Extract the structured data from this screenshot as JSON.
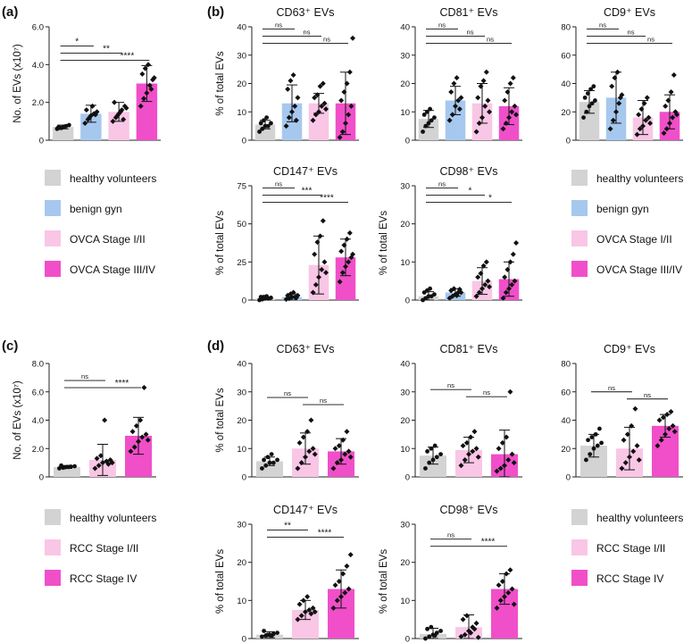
{
  "colors": {
    "healthy": "#d3d3d3",
    "benign": "#a6c8ef",
    "early": "#f9c6e6",
    "late": "#f04fc9",
    "axis": "#222222"
  },
  "panel_labels": {
    "a": "(a)",
    "b": "(b)",
    "c": "(c)",
    "d": "(d)"
  },
  "legends": {
    "ovca": [
      {
        "label": "healthy volunteers",
        "color": "#d3d3d3"
      },
      {
        "label": "benign gyn",
        "color": "#a6c8ef"
      },
      {
        "label": "OVCA Stage I/II",
        "color": "#f9c6e6"
      },
      {
        "label": "OVCA Stage III/IV",
        "color": "#f04fc9"
      }
    ],
    "ovca_b": [
      {
        "label": "healthy volunteers",
        "color": "#d3d3d3"
      },
      {
        "label": "benign gyn",
        "color": "#a6c8ef"
      },
      {
        "label": "OVCA Stage I/II",
        "color": "#f9c6e6"
      },
      {
        "label": "OVCA Stage III/IV",
        "color": "#f04fc9"
      }
    ],
    "rcc": [
      {
        "label": "healthy volunteers",
        "color": "#d3d3d3"
      },
      {
        "label": "RCC Stage I/II",
        "color": "#f9c6e6"
      },
      {
        "label": "RCC Stage IV",
        "color": "#f04fc9"
      }
    ],
    "rcc_d": [
      {
        "label": "healthy volunteers",
        "color": "#d3d3d3"
      },
      {
        "label": "RCC Stage I/II",
        "color": "#f9c6e6"
      },
      {
        "label": "RCC Stage IV",
        "color": "#f04fc9"
      }
    ]
  },
  "chart_data": [
    {
      "id": "a-total",
      "type": "bar",
      "title": "",
      "ylabel": "No. of EVs (x10⁷)",
      "ylim": [
        0,
        6
      ],
      "yticks": [
        "0",
        "2.0",
        "4.0",
        "6.0"
      ],
      "ytick_values": [
        0,
        2,
        4,
        6
      ],
      "categories": [
        "healthy volunteers",
        "benign gyn",
        "OVCA Stage I/II",
        "OVCA Stage III/IV"
      ],
      "values": [
        0.7,
        1.4,
        1.5,
        3.0
      ],
      "sd": [
        0.1,
        0.45,
        0.5,
        0.95
      ],
      "points": [
        [
          0.6,
          0.65,
          0.7,
          0.75,
          0.8,
          0.7,
          0.65,
          0.72
        ],
        [
          0.9,
          1.1,
          1.3,
          1.4,
          1.5,
          1.6,
          1.2,
          1.8,
          1.35
        ],
        [
          1.0,
          1.2,
          1.4,
          1.6,
          1.8,
          2.0,
          1.3,
          1.5,
          1.1,
          1.7
        ],
        [
          1.8,
          2.2,
          2.5,
          2.9,
          3.2,
          3.5,
          3.8,
          4.0,
          2.7,
          3.3
        ]
      ],
      "significance": [
        {
          "from": 0,
          "to": 1,
          "label": "*"
        },
        {
          "from": 0,
          "to": 2,
          "label": "**"
        },
        {
          "from": 0,
          "to": 3,
          "label": "****"
        }
      ]
    },
    {
      "id": "b-cd63",
      "type": "bar",
      "title": "CD63⁺ EVs",
      "ylabel": "% of total EVs",
      "ylim": [
        0,
        40
      ],
      "yticks": [
        "0",
        "10",
        "20",
        "30",
        "40"
      ],
      "ytick_values": [
        0,
        10,
        20,
        30,
        40
      ],
      "categories": [
        "healthy volunteers",
        "benign gyn",
        "OVCA Stage I/II",
        "OVCA Stage III/IV"
      ],
      "values": [
        5.5,
        13,
        13,
        13
      ],
      "sd": [
        1.5,
        6.5,
        3.5,
        11
      ],
      "points": [
        [
          3,
          4,
          5,
          5,
          6,
          6,
          7,
          8
        ],
        [
          5,
          8,
          10,
          12,
          15,
          18,
          21,
          23,
          7
        ],
        [
          7,
          9,
          10,
          12,
          13,
          15,
          16,
          19,
          20,
          11
        ],
        [
          1,
          3,
          6,
          9,
          12,
          14,
          17,
          20,
          24,
          36
        ]
      ],
      "significance": [
        {
          "from": 0,
          "to": 1,
          "label": "ns"
        },
        {
          "from": 0,
          "to": 2,
          "label": "ns"
        },
        {
          "from": 0,
          "to": 3,
          "label": "ns"
        }
      ]
    },
    {
      "id": "b-cd81",
      "type": "bar",
      "title": "CD81⁺ EVs",
      "ylabel": "",
      "ylim": [
        0,
        40
      ],
      "yticks": [
        "0",
        "10",
        "20",
        "30",
        "40"
      ],
      "ytick_values": [
        0,
        10,
        20,
        30,
        40
      ],
      "categories": [
        "healthy volunteers",
        "benign gyn",
        "OVCA Stage I/II",
        "OVCA Stage III/IV"
      ],
      "values": [
        7.5,
        14,
        13,
        12
      ],
      "sd": [
        3,
        5,
        7,
        6.5
      ],
      "points": [
        [
          3,
          5,
          6,
          7,
          8,
          9,
          10,
          11
        ],
        [
          7,
          9,
          12,
          14,
          15,
          17,
          20,
          22,
          11
        ],
        [
          3,
          6,
          8,
          12,
          14,
          15,
          19,
          21,
          24,
          10
        ],
        [
          4,
          6,
          8,
          10,
          12,
          14,
          17,
          20,
          22,
          9
        ]
      ],
      "significance": [
        {
          "from": 0,
          "to": 1,
          "label": "ns"
        },
        {
          "from": 0,
          "to": 2,
          "label": "ns"
        },
        {
          "from": 0,
          "to": 3,
          "label": "ns"
        }
      ]
    },
    {
      "id": "b-cd9",
      "type": "bar",
      "title": "CD9⁺ EVs",
      "ylabel": "",
      "ylim": [
        0,
        80
      ],
      "yticks": [
        "0",
        "20",
        "40",
        "60",
        "80"
      ],
      "ytick_values": [
        0,
        20,
        40,
        60,
        80
      ],
      "categories": [
        "healthy volunteers",
        "benign gyn",
        "OVCA Stage I/II",
        "OVCA Stage III/IV"
      ],
      "values": [
        27,
        30,
        16,
        20
      ],
      "sd": [
        8,
        18,
        12,
        12
      ],
      "points": [
        [
          16,
          20,
          24,
          26,
          28,
          30,
          33,
          36,
          38
        ],
        [
          8,
          14,
          20,
          26,
          32,
          38,
          44,
          48,
          30
        ],
        [
          4,
          8,
          10,
          14,
          16,
          18,
          22,
          26,
          30,
          12
        ],
        [
          5,
          8,
          12,
          16,
          20,
          24,
          28,
          34,
          46,
          18
        ]
      ],
      "significance": [
        {
          "from": 0,
          "to": 1,
          "label": "ns"
        },
        {
          "from": 0,
          "to": 2,
          "label": "ns"
        },
        {
          "from": 0,
          "to": 3,
          "label": "ns"
        }
      ]
    },
    {
      "id": "b-cd147",
      "type": "bar",
      "title": "CD147⁺ EVs",
      "ylabel": "% of total EVs",
      "ylim": [
        0,
        75
      ],
      "yticks": [
        "0",
        "25",
        "50",
        "75"
      ],
      "ytick_values": [
        0,
        25,
        50,
        75
      ],
      "categories": [
        "healthy volunteers",
        "benign gyn",
        "OVCA Stage I/II",
        "OVCA Stage III/IV"
      ],
      "values": [
        1,
        2,
        23,
        28
      ],
      "sd": [
        1,
        2,
        19,
        12
      ],
      "points": [
        [
          0,
          0.5,
          1,
          1,
          1.5,
          2,
          2,
          2.5
        ],
        [
          0.5,
          1,
          2,
          2,
          3,
          3,
          4,
          5,
          1.5
        ],
        [
          5,
          10,
          15,
          20,
          25,
          30,
          38,
          42,
          52,
          18
        ],
        [
          12,
          18,
          22,
          25,
          28,
          32,
          36,
          40,
          44,
          30
        ]
      ],
      "significance": [
        {
          "from": 0,
          "to": 1,
          "label": "ns"
        },
        {
          "from": 0,
          "to": 2,
          "label": "***"
        },
        {
          "from": 0,
          "to": 3,
          "label": "****"
        }
      ]
    },
    {
      "id": "b-cd98",
      "type": "bar",
      "title": "CD98⁺ EVs",
      "ylabel": "% of total EVs",
      "ylim": [
        0,
        30
      ],
      "yticks": [
        "0",
        "10",
        "20",
        "30"
      ],
      "ytick_values": [
        0,
        10,
        20,
        30
      ],
      "categories": [
        "healthy volunteers",
        "benign gyn",
        "OVCA Stage I/II",
        "OVCA Stage III/IV"
      ],
      "values": [
        1,
        2,
        5,
        5.5
      ],
      "sd": [
        1.2,
        1,
        3.5,
        4.5
      ],
      "points": [
        [
          0,
          0.5,
          1,
          1,
          1.5,
          2,
          2.5,
          3
        ],
        [
          0.5,
          1,
          1.5,
          2,
          2,
          2.5,
          3,
          1.2,
          2.8
        ],
        [
          1,
          2,
          3,
          4,
          5,
          6,
          7,
          9,
          10,
          3.5
        ],
        [
          0.5,
          2,
          3,
          4,
          5,
          6,
          8,
          10,
          12,
          15
        ]
      ],
      "significance": [
        {
          "from": 0,
          "to": 1,
          "label": "ns"
        },
        {
          "from": 0,
          "to": 2,
          "label": "*"
        },
        {
          "from": 0,
          "to": 3,
          "label": "*"
        }
      ]
    },
    {
      "id": "c-total",
      "type": "bar",
      "title": "",
      "ylabel": "No. of EVs (x10⁷)",
      "ylim": [
        0,
        8
      ],
      "yticks": [
        "0",
        "2.0",
        "4.0",
        "6.0",
        "8.0"
      ],
      "ytick_values": [
        0,
        2,
        4,
        6,
        8
      ],
      "categories": [
        "healthy volunteers",
        "RCC Stage I/II",
        "RCC Stage IV"
      ],
      "values": [
        0.7,
        1.2,
        2.9
      ],
      "sd": [
        0.1,
        1.1,
        1.3
      ],
      "points": [
        [
          0.6,
          0.65,
          0.7,
          0.72,
          0.75,
          0.8,
          0.68,
          0.7
        ],
        [
          0.6,
          0.8,
          1.0,
          1.1,
          1.2,
          1.3,
          1.5,
          4.0,
          0.9,
          1.0
        ],
        [
          1.8,
          2.1,
          2.5,
          2.8,
          3.0,
          3.2,
          3.6,
          4.0,
          6.3,
          2.6
        ]
      ],
      "significance": [
        {
          "from": 0,
          "to": 1,
          "label": "ns"
        },
        {
          "from": 0,
          "to": 2,
          "label": "****"
        }
      ]
    },
    {
      "id": "d-cd63",
      "type": "bar",
      "title": "CD63⁺ EVs",
      "ylabel": "% of total EVs",
      "ylim": [
        0,
        40
      ],
      "yticks": [
        "0",
        "10",
        "20",
        "30",
        "40"
      ],
      "ytick_values": [
        0,
        10,
        20,
        30,
        40
      ],
      "categories": [
        "healthy volunteers",
        "RCC Stage I/II",
        "RCC Stage IV"
      ],
      "values": [
        5.5,
        10,
        9
      ],
      "sd": [
        1.5,
        5.5,
        4.5
      ],
      "points": [
        [
          3,
          4,
          5,
          5,
          6,
          6,
          7,
          8
        ],
        [
          3,
          5,
          7,
          9,
          10,
          12,
          14,
          16,
          20,
          8
        ],
        [
          3,
          5,
          6,
          8,
          9,
          10,
          11,
          13,
          16,
          7
        ]
      ],
      "significance": [
        {
          "from": 0,
          "to": 1,
          "label": "ns"
        },
        {
          "from": 1,
          "to": 2,
          "label": "ns"
        }
      ]
    },
    {
      "id": "d-cd81",
      "type": "bar",
      "title": "CD81⁺ EVs",
      "ylabel": "",
      "ylim": [
        0,
        40
      ],
      "yticks": [
        "0",
        "10",
        "20",
        "30",
        "40"
      ],
      "ytick_values": [
        0,
        10,
        20,
        30,
        40
      ],
      "categories": [
        "healthy volunteers",
        "RCC Stage I/II",
        "RCC Stage IV"
      ],
      "values": [
        7.5,
        9.5,
        8
      ],
      "sd": [
        3,
        4.5,
        8.5
      ],
      "points": [
        [
          3,
          5,
          6,
          7,
          8,
          9,
          10,
          11
        ],
        [
          4,
          6,
          8,
          9,
          10,
          11,
          12,
          14,
          16,
          7
        ],
        [
          2,
          3,
          4,
          6,
          8,
          10,
          12,
          14,
          30,
          5
        ]
      ],
      "significance": [
        {
          "from": 0,
          "to": 1,
          "label": "ns"
        },
        {
          "from": 1,
          "to": 2,
          "label": "ns"
        }
      ]
    },
    {
      "id": "d-cd9",
      "type": "bar",
      "title": "CD9⁺ EVs",
      "ylabel": "",
      "ylim": [
        0,
        80
      ],
      "yticks": [
        "0",
        "20",
        "40",
        "60",
        "80"
      ],
      "ytick_values": [
        0,
        20,
        40,
        60,
        80
      ],
      "categories": [
        "healthy volunteers",
        "RCC Stage I/II",
        "RCC Stage IV"
      ],
      "values": [
        22,
        20,
        36
      ],
      "sd": [
        8,
        15,
        8
      ],
      "points": [
        [
          12,
          16,
          20,
          22,
          24,
          26,
          28,
          30,
          34
        ],
        [
          6,
          10,
          14,
          18,
          22,
          26,
          30,
          36,
          48,
          12
        ],
        [
          22,
          26,
          30,
          34,
          36,
          40,
          42,
          44,
          46,
          32
        ]
      ],
      "significance": [
        {
          "from": 0,
          "to": 1,
          "label": "ns"
        },
        {
          "from": 1,
          "to": 2,
          "label": "ns"
        }
      ]
    },
    {
      "id": "d-cd147",
      "type": "bar",
      "title": "CD147⁺ EVs",
      "ylabel": "% of total EVs",
      "ylim": [
        0,
        30
      ],
      "yticks": [
        "0",
        "10",
        "20",
        "30"
      ],
      "ytick_values": [
        0,
        10,
        20,
        30
      ],
      "categories": [
        "healthy volunteers",
        "RCC Stage I/II",
        "RCC Stage IV"
      ],
      "values": [
        1,
        7.5,
        13
      ],
      "sd": [
        0.8,
        2.5,
        5
      ],
      "points": [
        [
          0.5,
          0.8,
          1,
          1.2,
          1.5,
          2,
          1,
          0.7
        ],
        [
          5,
          6,
          7,
          7.5,
          8,
          9,
          10,
          11,
          6.5,
          7
        ],
        [
          8,
          10,
          11,
          12,
          13,
          14,
          15,
          17,
          19,
          22
        ]
      ],
      "significance": [
        {
          "from": 0,
          "to": 1,
          "label": "**"
        },
        {
          "from": 0,
          "to": 2,
          "label": "****"
        }
      ]
    },
    {
      "id": "d-cd98",
      "type": "bar",
      "title": "CD98⁺ EVs",
      "ylabel": "% of total EVs",
      "ylim": [
        0,
        30
      ],
      "yticks": [
        "0",
        "10",
        "20",
        "30"
      ],
      "ytick_values": [
        0,
        10,
        20,
        30
      ],
      "categories": [
        "healthy volunteers",
        "RCC Stage I/II",
        "RCC Stage IV"
      ],
      "values": [
        1.2,
        3,
        13
      ],
      "sd": [
        1.5,
        3.2,
        4
      ],
      "points": [
        [
          0,
          0.5,
          1,
          1.5,
          2,
          2.5,
          3,
          0.8
        ],
        [
          0.5,
          1,
          2,
          3,
          4,
          5,
          6,
          1.5,
          2.5,
          0.3
        ],
        [
          8,
          10,
          11,
          12,
          13,
          14,
          15,
          17,
          18,
          9
        ]
      ],
      "significance": [
        {
          "from": 0,
          "to": 1,
          "label": "ns"
        },
        {
          "from": 0,
          "to": 2,
          "label": "****"
        }
      ]
    }
  ]
}
